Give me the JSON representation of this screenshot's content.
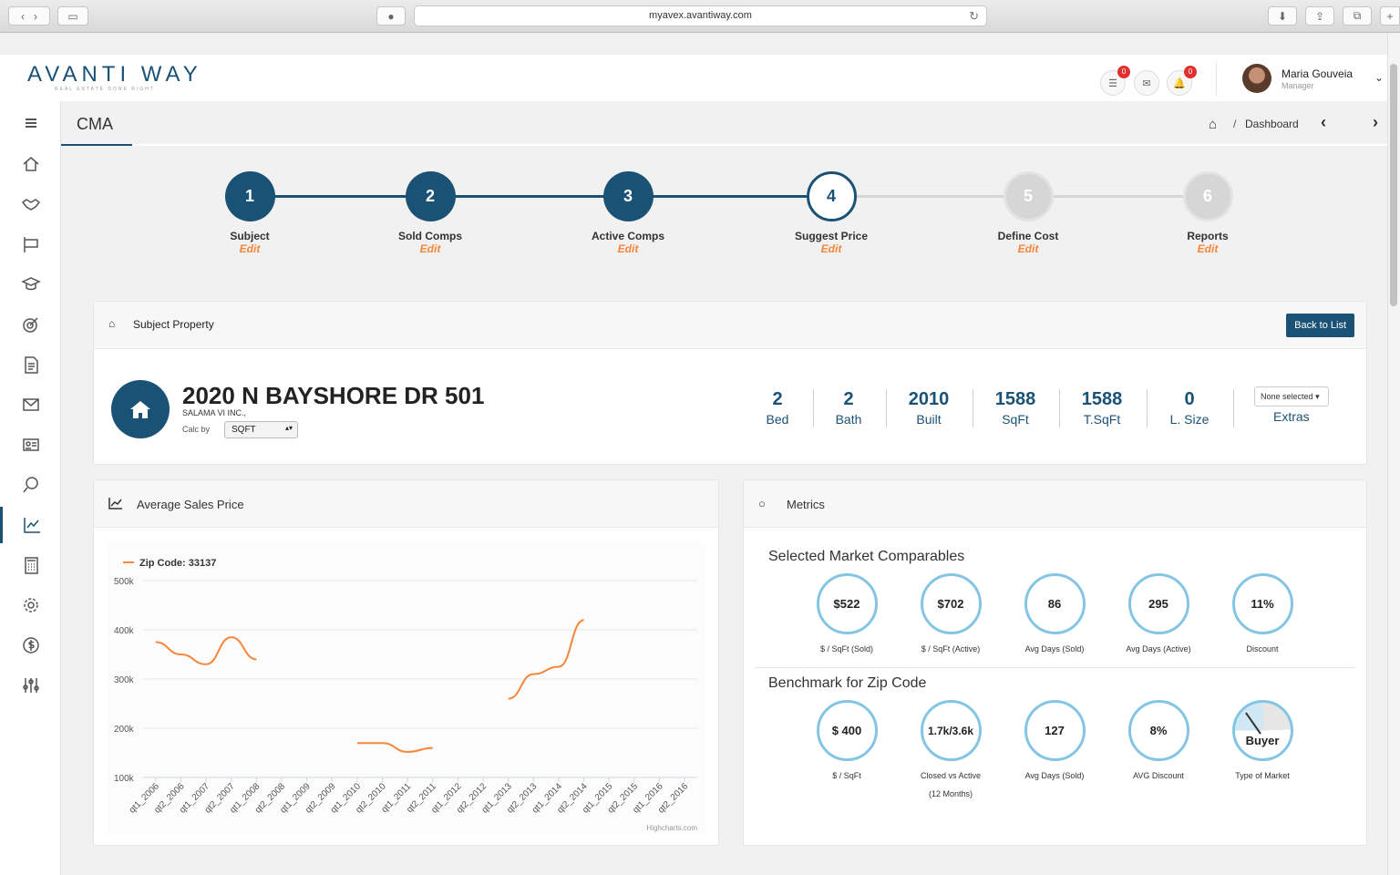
{
  "browser": {
    "url": "myavex.avantiway.com"
  },
  "header": {
    "logo": "AVANTI WAY",
    "logo_sub": "REAL ESTATE DONE RIGHT",
    "badge_messages": "0",
    "badge_notifications": "0",
    "user_name": "Maria Gouveia",
    "user_role": "Manager"
  },
  "page": {
    "title": "CMA",
    "breadcrumb": "Dashboard"
  },
  "steps": [
    {
      "num": "1",
      "label": "Subject",
      "edit": "Edit"
    },
    {
      "num": "2",
      "label": "Sold Comps",
      "edit": "Edit"
    },
    {
      "num": "3",
      "label": "Active Comps",
      "edit": "Edit"
    },
    {
      "num": "4",
      "label": "Suggest Price",
      "edit": "Edit"
    },
    {
      "num": "5",
      "label": "Define Cost",
      "edit": "Edit"
    },
    {
      "num": "6",
      "label": "Reports",
      "edit": "Edit"
    }
  ],
  "subject": {
    "title": "Subject Property",
    "back_button": "Back to List",
    "address": "2020 N BAYSHORE DR 501",
    "owner": "SALAMA VI INC.,",
    "calc_label": "Calc by",
    "calc_value": "SQFT",
    "stats": [
      {
        "value": "2",
        "label": "Bed"
      },
      {
        "value": "2",
        "label": "Bath"
      },
      {
        "value": "2010",
        "label": "Built"
      },
      {
        "value": "1588",
        "label": "SqFt"
      },
      {
        "value": "1588",
        "label": "T.SqFt"
      },
      {
        "value": "0",
        "label": "L. Size"
      }
    ],
    "extras_select": "None selected",
    "extras_label": "Extras"
  },
  "chart_card": {
    "title": "Average Sales Price"
  },
  "chart_data": {
    "type": "line",
    "legend": "Zip Code: 33137",
    "credit": "Highcharts.com",
    "categories": [
      "qt1_2006",
      "qt2_2006",
      "qt1_2007",
      "qt2_2007",
      "qt1_2008",
      "qt2_2008",
      "qt1_2009",
      "qt2_2009",
      "qt1_2010",
      "qt2_2010",
      "qt1_2011",
      "qt2_2011",
      "qt1_2012",
      "qt2_2012",
      "qt1_2013",
      "qt2_2013",
      "qt1_2014",
      "qt2_2014",
      "qt1_2015",
      "qt2_2015",
      "qt1_2016",
      "qt2_2016"
    ],
    "series": [
      {
        "name": "Zip Code: 33137",
        "color": "#f5863a",
        "values": [
          375000,
          350000,
          330000,
          385000,
          340000,
          null,
          null,
          null,
          170000,
          170000,
          152000,
          160000,
          null,
          null,
          260000,
          310000,
          325000,
          420000,
          null,
          null,
          null,
          null
        ]
      }
    ],
    "yticks": [
      "500k",
      "400k",
      "300k",
      "200k",
      "100k"
    ],
    "ylim": [
      100000,
      500000
    ]
  },
  "metrics_card": {
    "title": "Metrics",
    "section1_title": "Selected Market Comparables",
    "section1": [
      {
        "value": "$522",
        "label": "$ / SqFt (Sold)"
      },
      {
        "value": "$702",
        "label": "$ / SqFt (Active)"
      },
      {
        "value": "86",
        "label": "Avg Days (Sold)"
      },
      {
        "value": "295",
        "label": "Avg Days (Active)"
      },
      {
        "value": "11%",
        "label": "Discount"
      }
    ],
    "section2_title": "Benchmark for Zip Code",
    "section2": [
      {
        "value": "$ 400",
        "label": "$ / SqFt"
      },
      {
        "value": "1.7k/3.6k",
        "label": "Closed vs Active",
        "label2": "(12 Months)"
      },
      {
        "value": "127",
        "label": "Avg Days (Sold)"
      },
      {
        "value": "8%",
        "label": "AVG Discount"
      },
      {
        "value": "Buyer",
        "label": "Type of Market"
      }
    ]
  },
  "colors": {
    "primary": "#1a5276",
    "accent": "#f5863a",
    "metric_ring": "#84c5e3"
  }
}
